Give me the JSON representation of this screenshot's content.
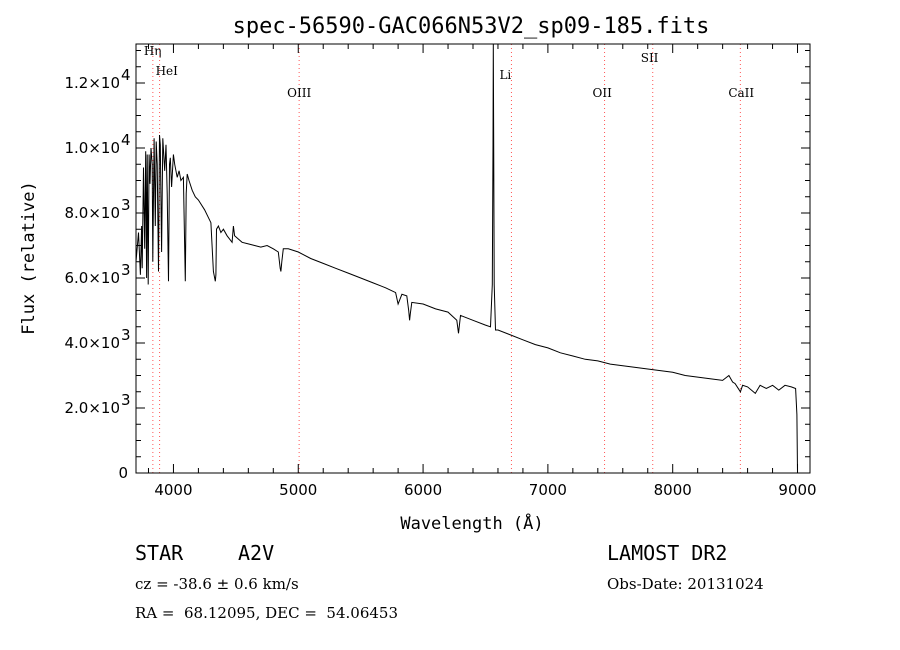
{
  "chart_data": {
    "type": "line",
    "title": "spec-56590-GAC066N53V2_sp09-185.fits",
    "xlabel": "Wavelength (Å)",
    "ylabel": "Flux (relative)",
    "xlim": [
      3700,
      9100
    ],
    "ylim": [
      0,
      13200
    ],
    "x_ticks": [
      4000,
      5000,
      6000,
      7000,
      8000,
      9000
    ],
    "x_tick_labels": [
      "4000",
      "5000",
      "6000",
      "7000",
      "8000",
      "9000"
    ],
    "y_ticks": [
      0,
      2000,
      4000,
      6000,
      8000,
      10000,
      12000
    ],
    "y_tick_mantissa": [
      "0",
      "2.0×10",
      "4.0×10",
      "6.0×10",
      "8.0×10",
      "1.0×10",
      "1.2×10"
    ],
    "y_tick_exponent": [
      "",
      "3",
      "3",
      "3",
      "3",
      "4",
      "4"
    ],
    "grid": false,
    "series": [
      {
        "color": "#000000",
        "x": [
          3700,
          3720,
          3735,
          3745,
          3750,
          3760,
          3770,
          3778,
          3785,
          3790,
          3798,
          3805,
          3812,
          3820,
          3830,
          3835,
          3845,
          3855,
          3862,
          3870,
          3880,
          3888,
          3895,
          3905,
          3915,
          3930,
          3940,
          3950,
          3960,
          3968,
          3975,
          3985,
          4000,
          4010,
          4030,
          4045,
          4060,
          4080,
          4095,
          4102,
          4110,
          4125,
          4150,
          4175,
          4200,
          4250,
          4300,
          4320,
          4335,
          4340,
          4345,
          4360,
          4380,
          4400,
          4430,
          4470,
          4480,
          4490,
          4520,
          4550,
          4600,
          4650,
          4700,
          4750,
          4800,
          4840,
          4855,
          4861,
          4868,
          4880,
          4920,
          5000,
          5100,
          5200,
          5300,
          5400,
          5500,
          5600,
          5700,
          5780,
          5800,
          5830,
          5870,
          5885,
          5892,
          5898,
          5910,
          6000,
          6100,
          6200,
          6270,
          6284,
          6300,
          6400,
          6500,
          6540,
          6555,
          6560,
          6563,
          6566,
          6570,
          6580,
          6600,
          6700,
          6800,
          6900,
          7000,
          7100,
          7200,
          7300,
          7400,
          7500,
          7600,
          7700,
          7800,
          7900,
          8000,
          8100,
          8200,
          8300,
          8400,
          8450,
          8480,
          8500,
          8542,
          8560,
          8600,
          8662,
          8700,
          8750,
          8800,
          8850,
          8900,
          8950,
          8985,
          8995,
          9000
        ],
        "y": [
          6500,
          7400,
          6100,
          7600,
          6300,
          9400,
          6900,
          9900,
          6000,
          9800,
          5800,
          9800,
          8900,
          10000,
          9500,
          6500,
          10300,
          7600,
          10200,
          9500,
          6200,
          10400,
          10100,
          6800,
          10300,
          9300,
          10100,
          8600,
          5900,
          9500,
          9700,
          8800,
          9800,
          9500,
          9100,
          9300,
          9000,
          9100,
          5900,
          8600,
          9200,
          9000,
          8700,
          8500,
          8400,
          8100,
          7700,
          6200,
          5900,
          6100,
          7500,
          7600,
          7400,
          7500,
          7300,
          7100,
          7600,
          7300,
          7200,
          7100,
          7050,
          7000,
          6950,
          7000,
          6900,
          6800,
          6300,
          6200,
          6500,
          6900,
          6900,
          6800,
          6600,
          6450,
          6300,
          6150,
          6000,
          5850,
          5700,
          5550,
          5200,
          5500,
          5450,
          5000,
          4700,
          4900,
          5250,
          5200,
          5050,
          4950,
          4700,
          4300,
          4850,
          4700,
          4550,
          4500,
          5800,
          10100,
          13200,
          10100,
          5800,
          4400,
          4400,
          4250,
          4100,
          3950,
          3850,
          3700,
          3600,
          3500,
          3450,
          3350,
          3300,
          3250,
          3200,
          3150,
          3100,
          3000,
          2950,
          2900,
          2850,
          3000,
          2800,
          2750,
          2500,
          2700,
          2650,
          2450,
          2700,
          2600,
          2700,
          2550,
          2700,
          2650,
          2600,
          1800,
          0
        ]
      }
    ],
    "annotations": [
      {
        "label": "Hη",
        "x": 3835
      },
      {
        "label": "HeI",
        "x": 3889
      },
      {
        "label": "OIII",
        "x": 5007
      },
      {
        "label": "Li",
        "x": 6708
      },
      {
        "label": "OII",
        "x": 7454
      },
      {
        "label": "SII",
        "x": 7840
      },
      {
        "label": "CaII",
        "x": 8542
      }
    ],
    "annotation_color": "#ff5555"
  },
  "info": {
    "object_type": "STAR",
    "subclass": "A2V",
    "survey": "LAMOST DR2",
    "cz": "cz = -38.6 ± 0.6 km/s",
    "obs_date": "Obs-Date: 20131024",
    "coords": "RA =  68.12095, DEC =  54.06453"
  }
}
